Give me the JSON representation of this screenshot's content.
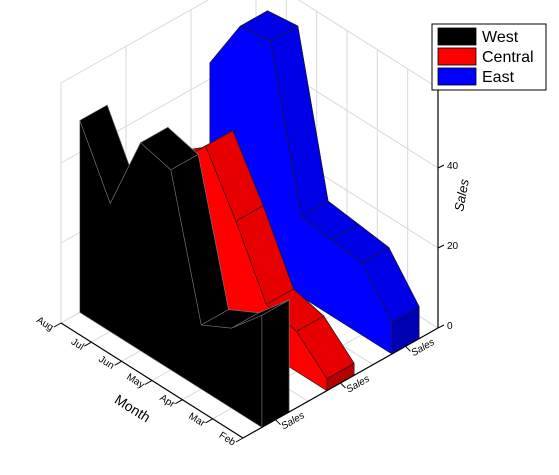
{
  "chart_data": {
    "type": "area",
    "subtype": "3d-wall",
    "x": [
      "Feb",
      "Mar",
      "Apr",
      "May",
      "Jun",
      "Jul",
      "Aug"
    ],
    "series": [
      {
        "name": "West",
        "color": "#000000",
        "values": [
          28,
          20,
          16,
          50,
          52,
          32,
          48
        ]
      },
      {
        "name": "Central",
        "color": "#ff0000",
        "values": [
          3,
          10,
          12,
          28,
          42,
          33,
          27
        ]
      },
      {
        "name": "East",
        "color": "#0000ff",
        "values": [
          8,
          18,
          19,
          20,
          59,
          58,
          44
        ]
      }
    ],
    "xlabel": "Month",
    "ylabel": "Sales",
    "zlabel": "Sales",
    "ylim": [
      0,
      60
    ],
    "yticks": [
      0,
      20,
      40,
      60
    ],
    "legend": "top-right",
    "grid": true
  }
}
